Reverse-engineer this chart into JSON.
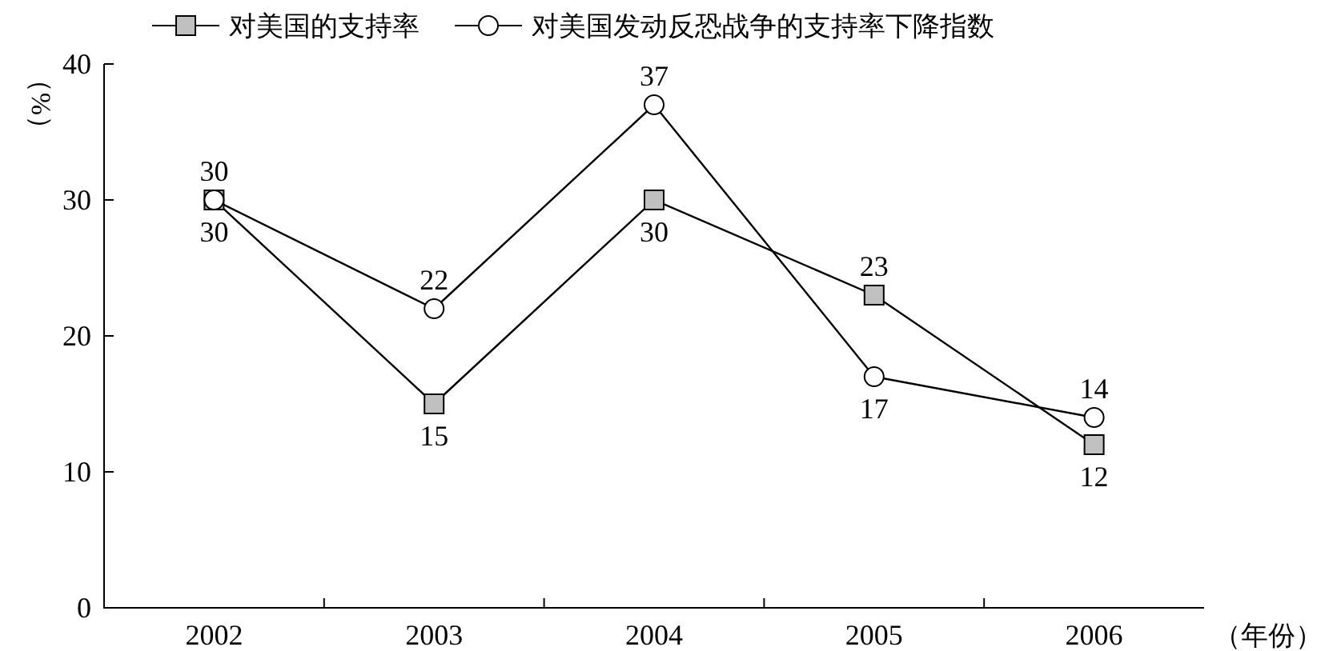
{
  "chart_data": {
    "type": "line",
    "xlabel": "（年份）",
    "ylabel": "（%）",
    "categories": [
      "2002",
      "2003",
      "2004",
      "2005",
      "2006"
    ],
    "series": [
      {
        "name": "对美国的支持率",
        "color": "#c0c0c0",
        "marker": "square",
        "values": [
          30,
          15,
          30,
          23,
          12
        ]
      },
      {
        "name": "对美国发动反恐战争的支持率下降指数",
        "color": "#ffffff",
        "marker": "circle",
        "values": [
          30,
          22,
          37,
          17,
          14
        ]
      }
    ],
    "ylim": [
      0,
      40
    ],
    "yticks": [
      0,
      10,
      20,
      30,
      40
    ],
    "data_labels": true,
    "legend": "top",
    "grid": false,
    "line_style": "solid"
  }
}
